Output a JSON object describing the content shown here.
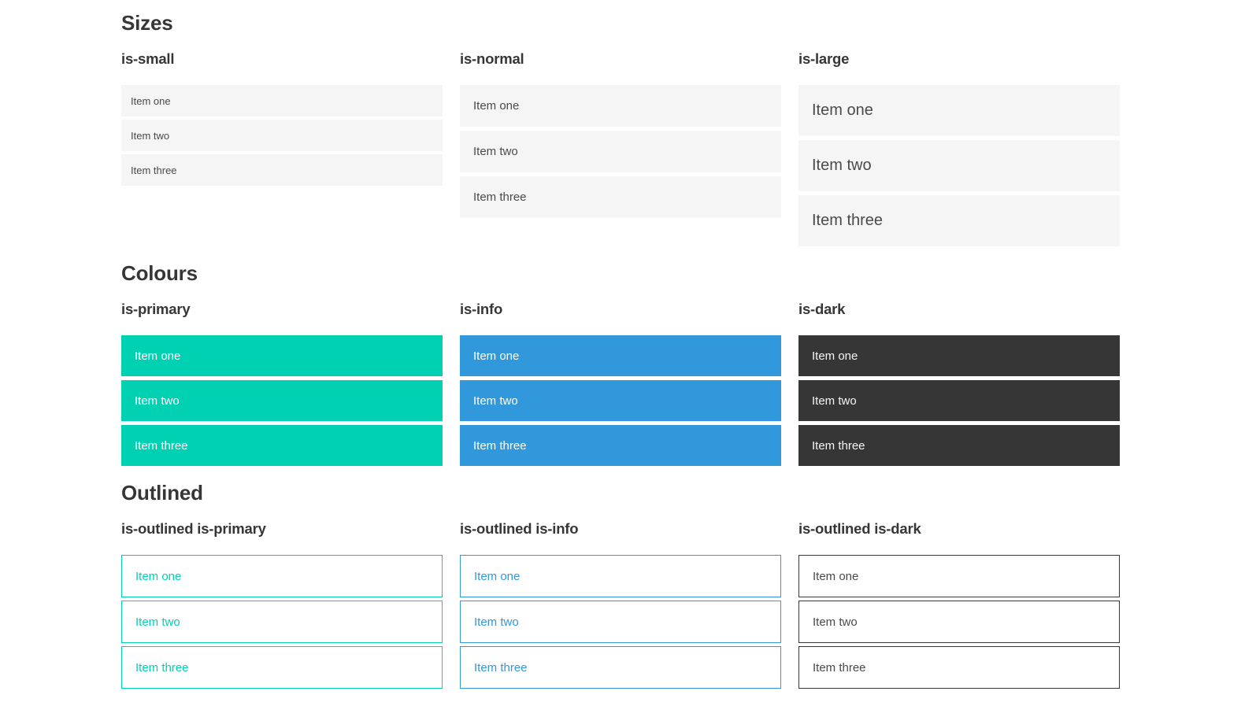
{
  "colors": {
    "primary": "#00d1b2",
    "info": "#3298dc",
    "dark": "#363636",
    "item_bg": "#f5f5f5",
    "text": "#4a4a4a",
    "heading": "#363636"
  },
  "sections": [
    {
      "title": "Sizes",
      "groups": [
        {
          "label": "is-small",
          "items": [
            "Item one",
            "Item two",
            "Item three"
          ]
        },
        {
          "label": "is-normal",
          "items": [
            "Item one",
            "Item two",
            "Item three"
          ]
        },
        {
          "label": "is-large",
          "items": [
            "Item one",
            "Item two",
            "Item three"
          ]
        }
      ]
    },
    {
      "title": "Colours",
      "groups": [
        {
          "label": "is-primary",
          "items": [
            "Item one",
            "Item two",
            "Item three"
          ]
        },
        {
          "label": "is-info",
          "items": [
            "Item one",
            "Item two",
            "Item three"
          ]
        },
        {
          "label": "is-dark",
          "items": [
            "Item one",
            "Item two",
            "Item three"
          ]
        }
      ]
    },
    {
      "title": "Outlined",
      "groups": [
        {
          "label": "is-outlined is-primary",
          "items": [
            "Item one",
            "Item two",
            "Item three"
          ]
        },
        {
          "label": "is-outlined is-info",
          "items": [
            "Item one",
            "Item two",
            "Item three"
          ]
        },
        {
          "label": "is-outlined is-dark",
          "items": [
            "Item one",
            "Item two",
            "Item three"
          ]
        }
      ]
    }
  ]
}
